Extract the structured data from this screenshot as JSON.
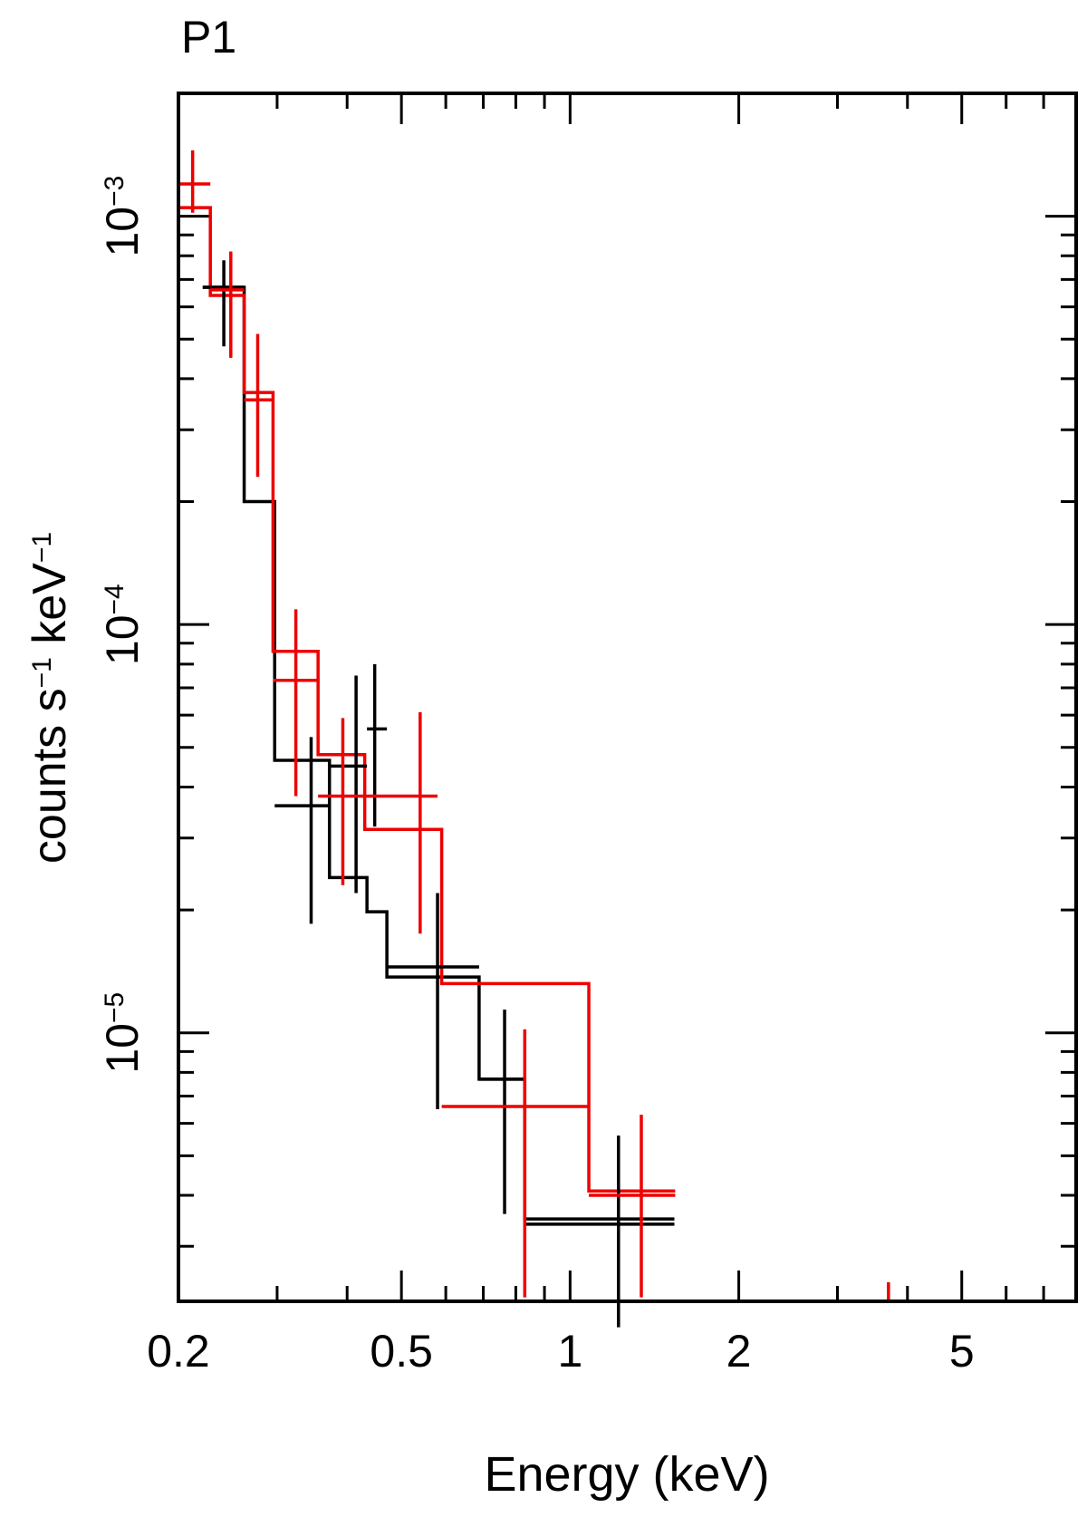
{
  "chart_data": {
    "type": "line",
    "title": "P1",
    "xlabel": "Energy (keV)",
    "ylabel": {
      "base": "counts s",
      "exp1": "−1",
      "mid": " keV",
      "exp2": "−1"
    },
    "x_scale": "log",
    "y_scale": "log",
    "xlim": [
      0.2,
      8.0
    ],
    "ylim": [
      2.2e-06,
      0.002
    ],
    "x_ticks": [
      {
        "value": 0.2,
        "label": "0.2"
      },
      {
        "value": 0.5,
        "label": "0.5"
      },
      {
        "value": 1,
        "label": "1"
      },
      {
        "value": 2,
        "label": "2"
      },
      {
        "value": 5,
        "label": "5"
      }
    ],
    "y_ticks": [
      {
        "value": 0.001,
        "base": "10",
        "exp": "−3"
      },
      {
        "value": 0.0001,
        "base": "10",
        "exp": "−4"
      },
      {
        "value": 1e-05,
        "base": "10",
        "exp": "−5"
      }
    ],
    "series": [
      {
        "color": "#000000",
        "data_points": [
          {
            "x": 0.241,
            "xlo": 0.221,
            "xhi": 0.262,
            "y": 0.00067,
            "ylo": 0.00048,
            "yhi": 0.00078
          },
          {
            "x": 0.345,
            "xlo": 0.297,
            "xhi": 0.372,
            "y": 3.6e-05,
            "ylo": 1.85e-05,
            "yhi": 5.3e-05
          },
          {
            "x": 0.415,
            "xlo": 0.372,
            "xhi": 0.434,
            "y": 4.5e-05,
            "ylo": 2.2e-05,
            "yhi": 7.5e-05
          },
          {
            "x": 0.448,
            "xlo": 0.434,
            "xhi": 0.471,
            "y": 5.55e-05,
            "ylo": 3.2e-05,
            "yhi": 8e-05
          },
          {
            "x": 0.58,
            "xlo": 0.471,
            "xhi": 0.688,
            "y": 1.45e-05,
            "ylo": 6.5e-06,
            "yhi": 2.2e-05
          },
          {
            "x": 0.764,
            "xlo": 0.688,
            "xhi": 0.83,
            "y": 7.7e-06,
            "ylo": 3.6e-06,
            "yhi": 1.14e-05
          },
          {
            "x": 1.22,
            "xlo": 0.83,
            "xhi": 1.535,
            "y": 3.4e-06,
            "ylo": 1.9e-06,
            "yhi": 5.6e-06
          }
        ],
        "model_steps": [
          [
            0.221,
            0.00067
          ],
          [
            0.262,
            0.0002
          ],
          [
            0.297,
            4.65e-05
          ],
          [
            0.372,
            2.4e-05
          ],
          [
            0.434,
            1.98e-05
          ],
          [
            0.471,
            1.37e-05
          ],
          [
            0.688,
            7.7e-06
          ],
          [
            0.83,
            3.5e-06
          ],
          [
            1.535,
            3.5e-06
          ]
        ]
      },
      {
        "color": "#ee0000",
        "data_points": [
          {
            "x": 0.212,
            "xlo": 0.2,
            "xhi": 0.228,
            "y": 0.0012,
            "ylo": 0.00102,
            "yhi": 0.00145
          },
          {
            "x": 0.248,
            "xlo": 0.228,
            "xhi": 0.262,
            "y": 0.00066,
            "ylo": 0.00045,
            "yhi": 0.00082
          },
          {
            "x": 0.277,
            "xlo": 0.262,
            "xhi": 0.295,
            "y": 0.000355,
            "ylo": 0.00023,
            "yhi": 0.000515
          },
          {
            "x": 0.324,
            "xlo": 0.295,
            "xhi": 0.355,
            "y": 7.3e-05,
            "ylo": 3.8e-05,
            "yhi": 0.000109
          },
          {
            "x": 0.393,
            "xlo": 0.355,
            "xhi": 0.43,
            "y": 3.8e-05,
            "ylo": 2.3e-05,
            "yhi": 5.9e-05
          },
          {
            "x": 0.54,
            "xlo": 0.43,
            "xhi": 0.58,
            "y": 3.8e-05,
            "ylo": 1.75e-05,
            "yhi": 6.1e-05
          },
          {
            "x": 0.83,
            "xlo": 0.59,
            "xhi": 1.08,
            "y": 6.6e-06,
            "ylo": 2.25e-06,
            "yhi": 1.02e-05
          },
          {
            "x": 1.34,
            "xlo": 1.08,
            "xhi": 1.54,
            "y": 4e-06,
            "ylo": 2.25e-06,
            "yhi": 6.3e-06
          },
          {
            "x": 3.7,
            "xlo": 3.7,
            "xhi": 3.7,
            "y": 2.3e-06,
            "ylo": 2.2e-06,
            "yhi": 2.45e-06
          }
        ],
        "model_steps": [
          [
            0.2,
            0.00105
          ],
          [
            0.228,
            0.00064
          ],
          [
            0.262,
            0.00037
          ],
          [
            0.295,
            8.6e-05
          ],
          [
            0.355,
            4.8e-05
          ],
          [
            0.43,
            3.15e-05
          ],
          [
            0.59,
            1.32e-05
          ],
          [
            1.08,
            4.1e-06
          ],
          [
            1.54,
            4.1e-06
          ]
        ]
      }
    ]
  }
}
